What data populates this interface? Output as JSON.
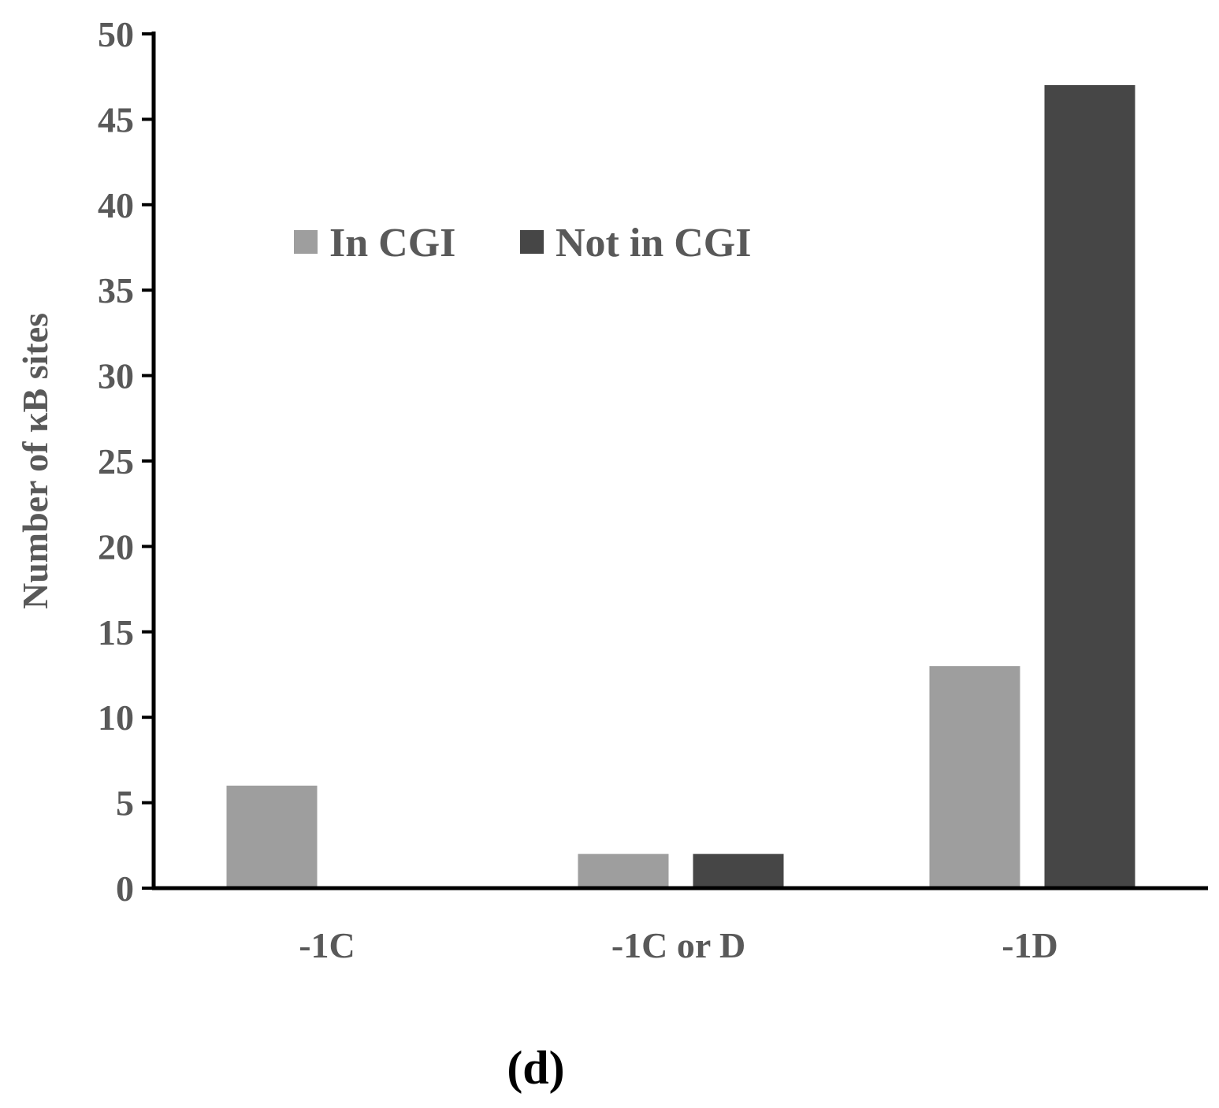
{
  "chart_data": {
    "type": "bar",
    "title": "",
    "xlabel": "",
    "ylabel": "Number of κB sites",
    "categories": [
      "-1C",
      "-1C or D",
      "-1D"
    ],
    "series": [
      {
        "name": "In CGI",
        "values": [
          6,
          2,
          13
        ],
        "color": "#9e9e9e"
      },
      {
        "name": "Not in CGI",
        "values": [
          0,
          2,
          47
        ],
        "color": "#464646"
      }
    ],
    "ylim": [
      0,
      50
    ],
    "yticks": [
      0,
      5,
      10,
      15,
      20,
      25,
      30,
      35,
      40,
      45,
      50
    ],
    "grid": false,
    "legend_position": "top-center"
  },
  "panel_label": "(d)"
}
